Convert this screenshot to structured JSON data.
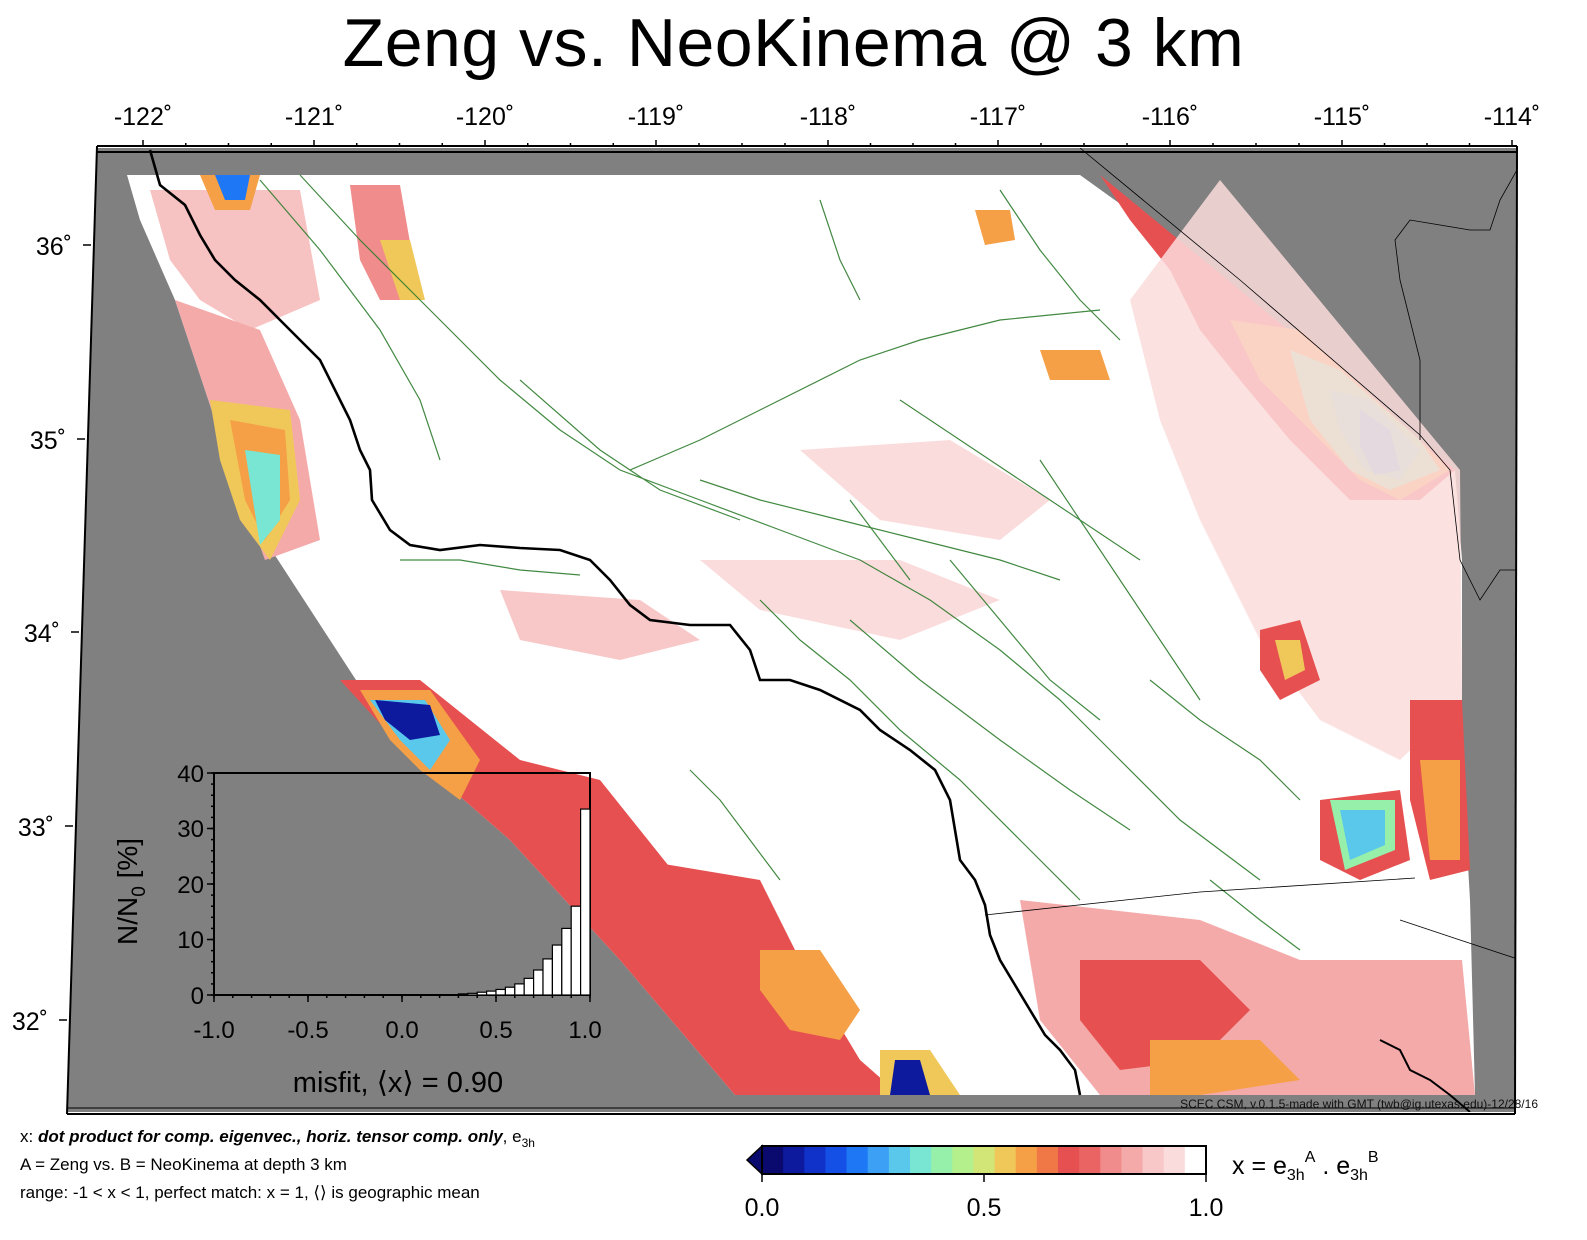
{
  "title": "Zeng vs. NeoKinema @ 3 km",
  "map": {
    "lon_ticks": [
      "-122˚",
      "-121˚",
      "-120˚",
      "-119˚",
      "-118˚",
      "-117˚",
      "-116˚",
      "-115˚",
      "-114˚"
    ],
    "lat_ticks": [
      "36˚",
      "35˚",
      "34˚",
      "33˚",
      "32˚"
    ],
    "lon_range": [
      -122.3,
      -114.0
    ],
    "lat_range": [
      31.6,
      36.5
    ],
    "land_color": "#808080",
    "background_color": "#ffffff",
    "coast_color": "#000000",
    "fault_color": "#2e7d2e"
  },
  "inset": {
    "y_ticks": [
      "40",
      "30",
      "20",
      "10",
      "0"
    ],
    "x_ticks": [
      "-1.0",
      "-0.5",
      "0.0",
      "0.5",
      "1.0"
    ],
    "ylabel": "N/N",
    "ylabel_sub": "0",
    "ylabel_unit": "[%]",
    "xlabel": "misfit, ⟨x⟩ = 0.90",
    "chart_data": {
      "type": "bar",
      "x_range": [
        -1.0,
        1.0
      ],
      "ylim": [
        0,
        40
      ],
      "bins": [
        0.3,
        0.35,
        0.4,
        0.45,
        0.5,
        0.55,
        0.6,
        0.65,
        0.7,
        0.75,
        0.8,
        0.85,
        0.9,
        0.95
      ],
      "values": [
        0.2,
        0.3,
        0.5,
        0.7,
        1.0,
        1.4,
        2.0,
        3.0,
        4.5,
        6.5,
        9.0,
        12.0,
        16.0,
        33.5
      ]
    }
  },
  "colorbar": {
    "min_label": "0.0",
    "mid_label": "0.5",
    "max_label": "1.0",
    "title_prefix": "x = e",
    "title_sub1": "3h",
    "title_sup1": "A",
    "title_dot": " . e",
    "title_sub2": "3h",
    "title_sup2": "B",
    "colors": [
      "#0a0a6e",
      "#0d1a9e",
      "#1032c8",
      "#1450e6",
      "#1e78f5",
      "#3ca0f5",
      "#5ac8eb",
      "#78e6d2",
      "#96f0aa",
      "#b4f08c",
      "#d2e678",
      "#f0c85a",
      "#f5a046",
      "#f07846",
      "#e65050",
      "#eb6464",
      "#f08c8c",
      "#f5aaaa",
      "#f8c8c8",
      "#fbdcdc",
      "#ffffff"
    ]
  },
  "footer": {
    "line1_prefix": "x: ",
    "line1_bold": "dot product for comp. eigenvec., horiz. tensor comp. only",
    "line1_suffix": ", e",
    "line1_sub": "3h",
    "line2": "A = Zeng vs.  B = NeoKinema at depth 3 km",
    "line3": "range: -1 < x < 1, perfect match: x = 1, ⟨⟩ is geographic mean",
    "credit": "SCEC CSM, v.0.1.5-made with GMT (twb@ig.utexas.edu)-12/28/16"
  }
}
